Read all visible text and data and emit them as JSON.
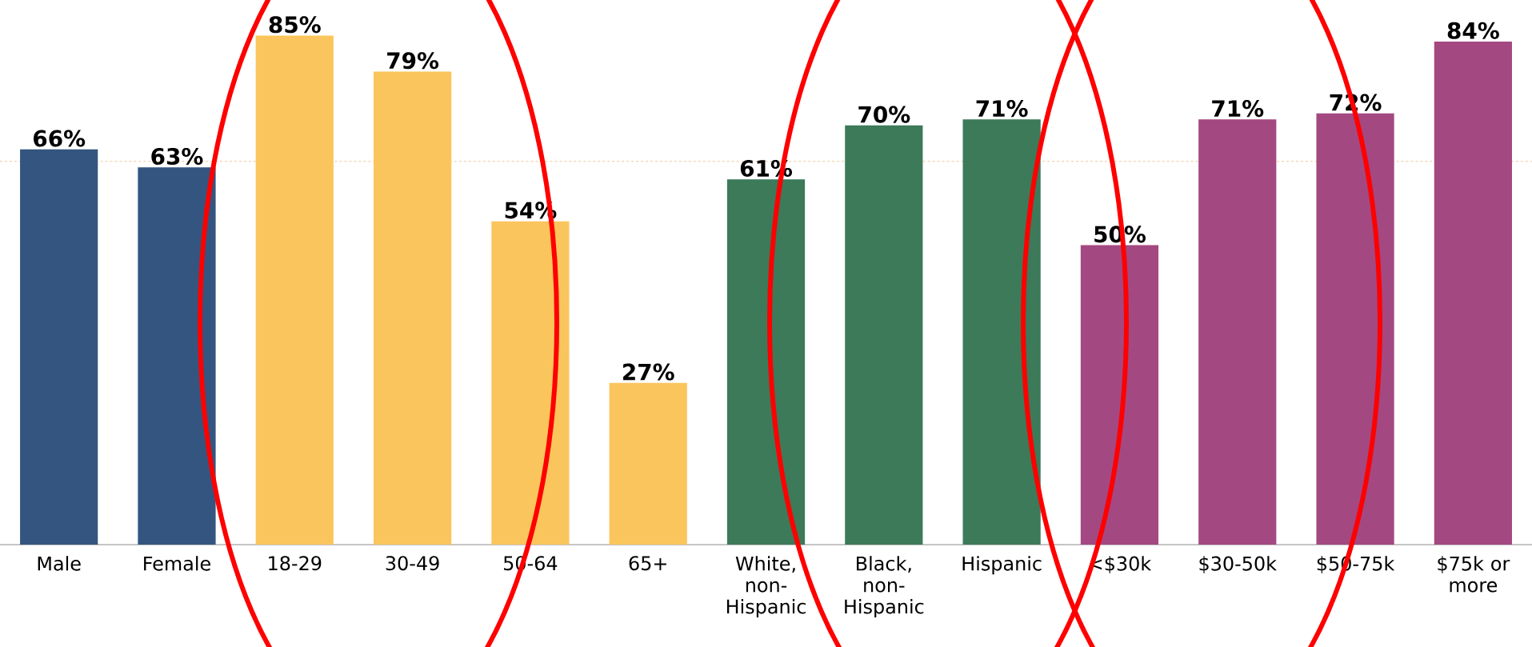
{
  "chart_data": {
    "type": "bar",
    "categories": [
      "Male",
      "Female",
      "18-29",
      "30-49",
      "50-64",
      "65+",
      "White, non-Hispanic",
      "Black, non-Hispanic",
      "Hispanic",
      "<$30k",
      "$30-50k",
      "$50-75k",
      "$75k or more"
    ],
    "values": [
      66,
      63,
      85,
      79,
      54,
      27,
      61,
      70,
      71,
      50,
      71,
      72,
      84
    ],
    "value_labels": [
      "66%",
      "63%",
      "85%",
      "79%",
      "54%",
      "27%",
      "61%",
      "70%",
      "71%",
      "50%",
      "71%",
      "72%",
      "84%"
    ],
    "colors": [
      "#34557f",
      "#34557f",
      "#fbc55d",
      "#fbc55d",
      "#fbc55d",
      "#fbc55d",
      "#3c7a5a",
      "#3c7a5a",
      "#3c7a5a",
      "#a44882",
      "#a44882",
      "#a44882",
      "#a44882"
    ],
    "ref_lines": [
      {
        "axis": "y",
        "value": 64,
        "color": "#f2d9bd",
        "line_style": "dashed"
      }
    ],
    "grid": false
  }
}
